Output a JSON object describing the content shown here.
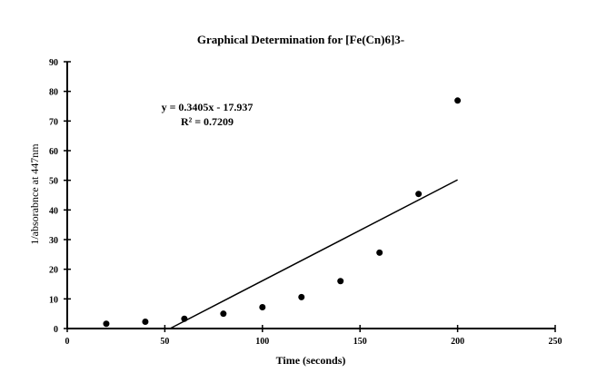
{
  "chart_data": {
    "type": "scatter",
    "title": "Graphical Determination for [Fe(Cn)6]3-",
    "xlabel": "Time (seconds)",
    "ylabel": "1/absorabnce at 447nm",
    "xlim": [
      0,
      250
    ],
    "ylim": [
      0,
      90
    ],
    "xticks": [
      0,
      50,
      100,
      150,
      200,
      250
    ],
    "yticks": [
      0,
      10,
      20,
      30,
      40,
      50,
      60,
      70,
      80,
      90
    ],
    "grid": false,
    "legend": "none",
    "series": [
      {
        "x": [
          20,
          40,
          60,
          80,
          100,
          120,
          140,
          160,
          180,
          200
        ],
        "y": [
          1.6,
          2.3,
          3.3,
          5.0,
          7.2,
          10.6,
          16.0,
          25.6,
          45.4,
          76.9
        ]
      }
    ],
    "trendline": {
      "slope": 0.3405,
      "intercept": -17.937,
      "x_end": 200
    },
    "annotations": {
      "equation": "y = 0.3405x - 17.937",
      "r_squared": "R² = 0.7209"
    },
    "colors": {
      "marker": "#000000",
      "line": "#000000",
      "axis": "#000000"
    }
  }
}
